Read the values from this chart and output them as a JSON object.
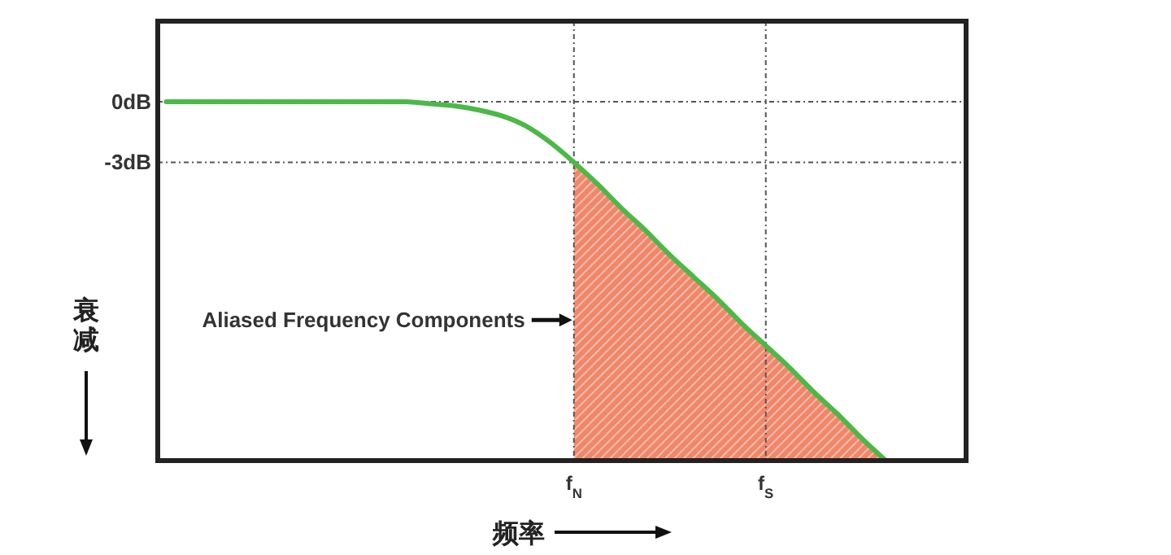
{
  "chart_data": {
    "type": "line",
    "xlabel": "频率",
    "ylabel": "衰减",
    "categories": [
      null,
      null,
      null,
      null,
      null,
      null,
      null,
      null,
      null,
      null,
      null,
      null,
      null,
      null,
      null,
      null,
      null,
      "f$_{N}$",
      null,
      null,
      null,
      null,
      null,
      null,
      null,
      "f$_{S}$",
      null,
      null,
      null,
      null,
      null,
      null,
      null,
      null
    ],
    "ylim": [
      -17.8,
      4
    ],
    "yticks": [
      {
        "value": 0,
        "label": "0dB"
      },
      {
        "value": -3,
        "label": "-3dB"
      }
    ],
    "grid": true,
    "line_style": "solid",
    "marker": "none",
    "series": [
      {
        "color": "#4cb848",
        "values": [
          0,
          0,
          0,
          0,
          0,
          0,
          0,
          0,
          0,
          0,
          0,
          -0.1,
          -0.2,
          -0.4,
          -0.7,
          -1.2,
          -2.0,
          -3,
          -4.1,
          -5.3,
          -6.4,
          -7.6,
          -8.7,
          -9.8,
          -11.0,
          -12.1,
          -13.2,
          -14.4,
          -15.5,
          -16.7,
          -17.8,
          null,
          null,
          null
        ],
        "lower": [
          null,
          null,
          null,
          null,
          null,
          null,
          null,
          null,
          null,
          null,
          null,
          null,
          null,
          null,
          null,
          null,
          null,
          -17.8,
          -17.8,
          -17.8,
          -17.8,
          -17.8,
          -17.8,
          -17.8,
          -17.8,
          -17.8,
          -17.8,
          -17.8,
          -17.8,
          -17.8,
          -17.8,
          null,
          null,
          null
        ],
        "upper": [
          null,
          null,
          null,
          null,
          null,
          null,
          null,
          null,
          null,
          null,
          null,
          null,
          null,
          null,
          null,
          null,
          null,
          -3,
          -4.1,
          -5.3,
          -6.4,
          -7.6,
          -8.7,
          -9.8,
          -11.0,
          -12.1,
          -13.2,
          -14.4,
          -15.5,
          -16.7,
          -17.8,
          null,
          null,
          null
        ]
      }
    ],
    "annotations": [
      "Aliased Frequency Components"
    ]
  }
}
